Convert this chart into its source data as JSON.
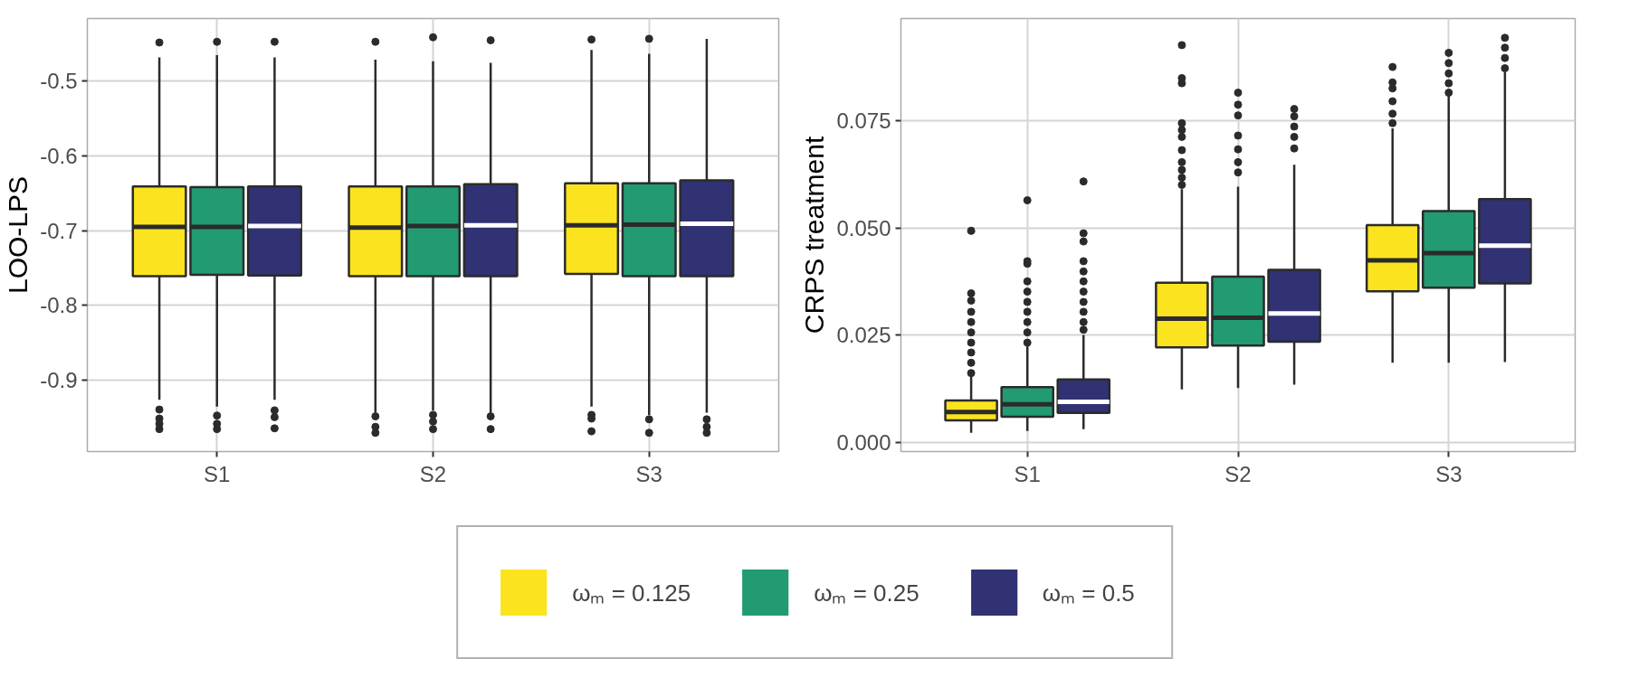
{
  "chart_data": [
    {
      "type": "box",
      "ylabel": "LOO-LPS",
      "categories": [
        "S1",
        "S2",
        "S3"
      ],
      "ylim": [
        -0.995,
        -0.417
      ],
      "yticks": [
        -0.9,
        -0.8,
        -0.7,
        -0.6,
        -0.5
      ],
      "grid": true,
      "legend": "bottom",
      "marker": "circle",
      "series": [
        {
          "name": "ωₘ = 0.125",
          "color": "#fbe41f",
          "boxes": [
            {
              "low": -0.926,
              "q1": -0.761,
              "median": -0.695,
              "q3": -0.641,
              "high": -0.469,
              "outliers": [
                -0.449,
                -0.939,
                -0.951,
                -0.958,
                -0.965
              ]
            },
            {
              "low": -0.943,
              "q1": -0.761,
              "median": -0.696,
              "q3": -0.641,
              "high": -0.472,
              "outliers": [
                -0.448,
                -0.948,
                -0.962,
                -0.97
              ]
            },
            {
              "low": -0.935,
              "q1": -0.758,
              "median": -0.693,
              "q3": -0.637,
              "high": -0.459,
              "outliers": [
                -0.445,
                -0.946,
                -0.951,
                -0.968
              ]
            }
          ]
        },
        {
          "name": "ωₘ = 0.25",
          "color": "#229b72",
          "boxes": [
            {
              "low": -0.935,
              "q1": -0.759,
              "median": -0.695,
              "q3": -0.642,
              "high": -0.466,
              "outliers": [
                -0.448,
                -0.947,
                -0.958,
                -0.965
              ]
            },
            {
              "low": -0.94,
              "q1": -0.761,
              "median": -0.694,
              "q3": -0.641,
              "high": -0.474,
              "outliers": [
                -0.442,
                -0.946,
                -0.955,
                -0.965
              ]
            },
            {
              "low": -0.946,
              "q1": -0.761,
              "median": -0.692,
              "q3": -0.637,
              "high": -0.464,
              "outliers": [
                -0.444,
                -0.952,
                -0.97
              ]
            }
          ]
        },
        {
          "name": "ωₘ = 0.5",
          "color": "#313273",
          "boxes": [
            {
              "low": -0.926,
              "q1": -0.76,
              "median": -0.694,
              "q3": -0.641,
              "high": -0.469,
              "outliers": [
                -0.448,
                -0.94,
                -0.949,
                -0.964
              ]
            },
            {
              "low": -0.943,
              "q1": -0.761,
              "median": -0.693,
              "q3": -0.638,
              "high": -0.476,
              "outliers": [
                -0.446,
                -0.948,
                -0.965
              ]
            },
            {
              "low": -0.943,
              "q1": -0.761,
              "median": -0.691,
              "q3": -0.633,
              "high": -0.444,
              "outliers": [
                -0.952,
                -0.962,
                -0.97
              ]
            }
          ]
        }
      ]
    },
    {
      "type": "box",
      "ylabel": "CRPS treatment",
      "categories": [
        "S1",
        "S2",
        "S3"
      ],
      "ylim": [
        -0.0021,
        0.0989
      ],
      "yticks": [
        {
          "value": 0,
          "label": "0.000"
        },
        {
          "value": 0.025,
          "label": "0.025"
        },
        {
          "value": 0.05,
          "label": "0.050"
        },
        {
          "value": 0.075,
          "label": "0.075"
        }
      ],
      "grid": true,
      "marker": "circle",
      "series": [
        {
          "color": "#fbe41f",
          "boxes": [
            {
              "low": 0.0023,
              "q1": 0.0052,
              "median": 0.0071,
              "q3": 0.0098,
              "high": 0.0158,
              "outliers": [
                0.0162,
                0.0186,
                0.021,
                0.0233,
                0.0257,
                0.0281,
                0.0305,
                0.0331,
                0.0348,
                0.0494
              ]
            },
            {
              "low": 0.0124,
              "q1": 0.0222,
              "median": 0.0289,
              "q3": 0.0373,
              "high": 0.0591,
              "outliers": [
                0.0601,
                0.0618,
                0.0636,
                0.0654,
                0.0682,
                0.0713,
                0.0729,
                0.0745,
                0.0838,
                0.085,
                0.0927
              ]
            },
            {
              "low": 0.0186,
              "q1": 0.0353,
              "median": 0.0425,
              "q3": 0.0507,
              "high": 0.0733,
              "outliers": [
                0.0745,
                0.0767,
                0.0796,
                0.0826,
                0.084,
                0.0876
              ]
            }
          ]
        },
        {
          "color": "#229b72",
          "boxes": [
            {
              "low": 0.0027,
              "q1": 0.006,
              "median": 0.0089,
              "q3": 0.0129,
              "high": 0.0226,
              "outliers": [
                0.0233,
                0.0257,
                0.0281,
                0.0305,
                0.0328,
                0.0352,
                0.0376,
                0.0417,
                0.0423,
                0.0565
              ]
            },
            {
              "low": 0.0127,
              "q1": 0.0226,
              "median": 0.0291,
              "q3": 0.0387,
              "high": 0.0597,
              "outliers": [
                0.063,
                0.0654,
                0.0684,
                0.0716,
                0.0763,
                0.0788,
                0.0816
              ]
            },
            {
              "low": 0.0186,
              "q1": 0.0361,
              "median": 0.0442,
              "q3": 0.054,
              "high": 0.081,
              "outliers": [
                0.0816,
                0.0838,
                0.0861,
                0.0885,
                0.0909
              ]
            }
          ]
        },
        {
          "color": "#313273",
          "boxes": [
            {
              "low": 0.0031,
              "q1": 0.0069,
              "median": 0.0095,
              "q3": 0.0147,
              "high": 0.0251,
              "outliers": [
                0.0263,
                0.0281,
                0.0305,
                0.0328,
                0.0352,
                0.0376,
                0.0399,
                0.0423,
                0.0469,
                0.0488,
                0.0609
              ]
            },
            {
              "low": 0.0135,
              "q1": 0.0235,
              "median": 0.0301,
              "q3": 0.0403,
              "high": 0.0648,
              "outliers": [
                0.0686,
                0.0713,
                0.0737,
                0.0761,
                0.0778
              ]
            },
            {
              "low": 0.0188,
              "q1": 0.0371,
              "median": 0.0459,
              "q3": 0.0568,
              "high": 0.0864,
              "outliers": [
                0.0873,
                0.0897,
                0.0921,
                0.0944
              ]
            }
          ]
        }
      ]
    }
  ]
}
